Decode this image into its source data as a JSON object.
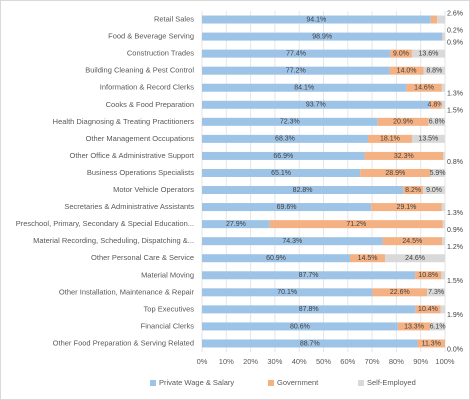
{
  "chart_data": {
    "type": "stacked-bar-horizontal",
    "categories": [
      "Retail Sales",
      "Food & Beverage Serving",
      "Construction Trades",
      "Building Cleaning & Pest Control",
      "Information & Record Clerks",
      "Cooks & Food Preparation",
      "Health Diagnosing & Treating Practitioners",
      "Other Management Occupations",
      "Other Office & Administrative Support",
      "Business Operations Specialists",
      "Motor Vehicle Operators",
      "Secretaries & Administrative Assistants",
      "Preschool, Primary, Secondary & Special Education...",
      "Material Recording, Scheduling, Dispatching &...",
      "Other Personal Care & Service",
      "Material Moving",
      "Other Installation, Maintenance & Repair",
      "Top Executives",
      "Financial Clerks",
      "Other Food Preparation & Serving Related"
    ],
    "series": [
      {
        "name": "Private Wage & Salary",
        "color": "#9dc3e6",
        "values": [
          94.1,
          98.9,
          77.4,
          77.2,
          84.1,
          93.7,
          72.3,
          68.3,
          66.9,
          65.1,
          82.8,
          69.6,
          27.9,
          74.3,
          60.9,
          87.7,
          70.1,
          87.8,
          80.6,
          88.7
        ],
        "value_labels": [
          "94.1%",
          "98.9%",
          "77.4%",
          "77.2%",
          "84.1%",
          "93.7%",
          "72.3%",
          "68.3%",
          "66.9%",
          "65.1%",
          "82.8%",
          "69.6%",
          "27.9%",
          "74.3%",
          "60.9%",
          "87.7%",
          "70.1%",
          "87.8%",
          "80.6%",
          "88.7%"
        ]
      },
      {
        "name": "Government",
        "color": "#f4b183",
        "values": [
          2.6,
          0.2,
          9.0,
          14.0,
          14.6,
          4.8,
          20.9,
          18.1,
          32.3,
          28.9,
          8.2,
          29.1,
          71.2,
          24.5,
          14.5,
          10.8,
          22.6,
          10.4,
          13.3,
          11.3
        ],
        "value_labels": [
          "2.6%",
          "0.2%",
          "9.0%",
          "14.0%",
          "14.6%",
          "4.8%",
          "20.9%",
          "18.1%",
          "32.3%",
          "28.9%",
          "8.2%",
          "29.1%",
          "71.2%",
          "24.5%",
          "14.5%",
          "10.8%",
          "22.6%",
          "10.4%",
          "13.3%",
          "11.3%"
        ]
      },
      {
        "name": "Self-Employed",
        "color": "#d9d9d9",
        "values": [
          3.3,
          0.9,
          13.6,
          8.8,
          1.3,
          1.5,
          6.8,
          13.5,
          0.8,
          5.9,
          9.0,
          1.3,
          0.9,
          1.2,
          24.6,
          1.5,
          7.3,
          1.9,
          6.1,
          0.0
        ],
        "value_labels": [
          null,
          "0.9%",
          "13.6%",
          "8.8%",
          "1.3%",
          "1.5%",
          "6.8%",
          "13.5%",
          "0.8%",
          "5.9%",
          "9.0%",
          "1.3%",
          "0.9%",
          "1.2%",
          "24.6%",
          "1.5%",
          "7.3%",
          "1.9%",
          "6.1%",
          "0.0%"
        ]
      }
    ],
    "xlim": [
      0,
      100
    ],
    "xticks": [
      {
        "value": 0,
        "label": "0%"
      },
      {
        "value": 10,
        "label": "10%"
      },
      {
        "value": 20,
        "label": "20%"
      },
      {
        "value": 30,
        "label": "30%"
      },
      {
        "value": 40,
        "label": "40%"
      },
      {
        "value": 50,
        "label": "50%"
      },
      {
        "value": 60,
        "label": "60%"
      },
      {
        "value": 70,
        "label": "70%"
      },
      {
        "value": 80,
        "label": "80%"
      },
      {
        "value": 90,
        "label": "90%"
      },
      {
        "value": 100,
        "label": "100%"
      }
    ],
    "grid": true,
    "legend": "bottom"
  }
}
